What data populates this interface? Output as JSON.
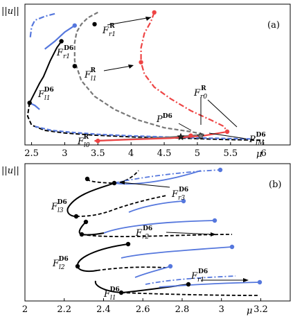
{
  "chart_data": [
    {
      "panel": "(a)",
      "type": "line",
      "ylabel": "||u||",
      "xlabel": "μ",
      "xlim": [
        2.4,
        6.4
      ],
      "x_ticks": [
        "2.5",
        "3",
        "3.5",
        "4",
        "4.5",
        "5",
        "5.5",
        "6"
      ],
      "x_tick_values": [
        2.5,
        3,
        3.5,
        4,
        4.5,
        5,
        5.5,
        6
      ],
      "colors": {
        "D6_stable": "#000000",
        "D6_branch": "#5577dd",
        "R_branch": "#ee4444",
        "R_unstable": "#777777",
        "stable_low": "#888888"
      },
      "series": [
        {
          "color": "#5577dd",
          "style": "dashdot",
          "points": [
            [
              2.85,
              0.98
            ],
            [
              2.7,
              0.96
            ],
            [
              2.55,
              0.93
            ],
            [
              2.5,
              0.88
            ],
            [
              2.48,
              0.8
            ]
          ]
        },
        {
          "color": "#5577dd",
          "style": "solid",
          "points": [
            [
              3.15,
              0.89
            ],
            [
              3.0,
              0.84
            ],
            [
              2.85,
              0.77
            ],
            [
              2.7,
              0.71
            ]
          ]
        },
        {
          "color": "#000000",
          "style": "solid",
          "points": [
            [
              2.47,
              0.3
            ],
            [
              2.55,
              0.38
            ],
            [
              2.62,
              0.45
            ],
            [
              2.68,
              0.5
            ],
            [
              2.78,
              0.62
            ],
            [
              2.88,
              0.72
            ],
            [
              2.95,
              0.77
            ]
          ]
        },
        {
          "color": "#5577dd",
          "style": "solid",
          "points": [
            [
              2.47,
              0.3
            ],
            [
              2.55,
              0.28
            ],
            [
              2.62,
              0.25
            ]
          ]
        },
        {
          "color": "#000000",
          "style": "dashed",
          "points": [
            [
              2.47,
              0.3
            ],
            [
              2.44,
              0.2
            ],
            [
              2.5,
              0.13
            ],
            [
              2.7,
              0.09
            ],
            [
              3.0,
              0.07
            ],
            [
              3.4,
              0.055
            ],
            [
              4.0,
              0.04
            ],
            [
              4.8,
              0.03
            ],
            [
              5.4,
              0.02
            ],
            [
              6.0,
              0.015
            ]
          ]
        },
        {
          "color": "#5577dd",
          "style": "dashed",
          "points": [
            [
              2.55,
              0.12
            ],
            [
              2.8,
              0.09
            ],
            [
              3.1,
              0.075
            ],
            [
              3.5,
              0.06
            ],
            [
              4.0,
              0.048
            ],
            [
              4.6,
              0.038
            ],
            [
              5.2,
              0.03
            ],
            [
              5.8,
              0.025
            ]
          ]
        },
        {
          "color": "#777777",
          "style": "dashed",
          "points": [
            [
              3.5,
              0.99
            ],
            [
              3.35,
              0.95
            ],
            [
              3.25,
              0.9
            ],
            [
              3.18,
              0.84
            ],
            [
              3.15,
              0.76
            ],
            [
              3.15,
              0.62
            ],
            [
              3.25,
              0.47
            ],
            [
              3.45,
              0.35
            ],
            [
              3.75,
              0.25
            ],
            [
              4.1,
              0.17
            ],
            [
              4.5,
              0.11
            ],
            [
              4.9,
              0.08
            ],
            [
              5.1,
              0.06
            ]
          ]
        },
        {
          "color": "#777777",
          "style": "solid",
          "points": [
            [
              3.45,
              0.01
            ],
            [
              3.9,
              0.02
            ],
            [
              4.5,
              0.035
            ],
            [
              4.9,
              0.05
            ],
            [
              5.1,
              0.06
            ]
          ]
        },
        {
          "color": "#ee4444",
          "style": "dashdot",
          "points": [
            [
              4.35,
              0.99
            ],
            [
              4.3,
              0.92
            ],
            [
              4.2,
              0.83
            ],
            [
              4.15,
              0.72
            ],
            [
              4.15,
              0.61
            ],
            [
              4.2,
              0.52
            ],
            [
              4.35,
              0.42
            ],
            [
              4.6,
              0.33
            ],
            [
              4.9,
              0.24
            ],
            [
              5.2,
              0.17
            ],
            [
              5.4,
              0.12
            ],
            [
              5.45,
              0.08
            ]
          ]
        },
        {
          "color": "#ee4444",
          "style": "solid",
          "points": [
            [
              3.45,
              0.01
            ],
            [
              4.0,
              0.02
            ],
            [
              4.6,
              0.03
            ],
            [
              5.1,
              0.05
            ],
            [
              5.45,
              0.08
            ]
          ]
        }
      ],
      "points": [
        {
          "label": "F_r1^R",
          "x": 3.45,
          "y": 0.9
        },
        {
          "label": "F_l1^R",
          "x": 3.15,
          "y": 0.58
        },
        {
          "label": "F_r1^D6",
          "x": 2.95,
          "y": 0.77
        },
        {
          "label": "F_l1^D6",
          "x": 2.47,
          "y": 0.3
        },
        {
          "label": "F_l0^R",
          "x": 3.5,
          "y": 0.01
        },
        {
          "label": "F_r0^R",
          "x": 4.9,
          "y": 0.05
        },
        {
          "label": "P^D6",
          "x": 4.75,
          "y": 0.04
        },
        {
          "label": "P_IM^D6",
          "x": 5.05,
          "y": 0.045
        }
      ],
      "annotations": {
        "panel_label": "(a)",
        "F_r1_R": {
          "base": "F",
          "sup": "R",
          "sub": "r1"
        },
        "F_l1_R": {
          "base": "F",
          "sup": "R",
          "sub": "l1"
        },
        "F_r1_D6": {
          "base": "F",
          "sup": "D6",
          "sub": "r1"
        },
        "F_l1_D6": {
          "base": "F",
          "sup": "D6",
          "sub": "l1"
        },
        "F_l0_R": {
          "base": "F",
          "sup": "R",
          "sub": "l0"
        },
        "F_r0_R": {
          "base": "F",
          "sup": "R",
          "sub": "r0"
        },
        "P_D6": {
          "base": "P",
          "sup": "D6",
          "sub": ""
        },
        "P_IM_D6": {
          "base": "P",
          "sup": "D6",
          "sub": "IM"
        }
      }
    },
    {
      "panel": "(b)",
      "type": "line",
      "ylabel": "||u||",
      "xlabel": "μ",
      "xlim": [
        2.0,
        3.35
      ],
      "x_ticks": [
        "2",
        "2.2",
        "2.4",
        "2.6",
        "2.8",
        "3",
        "3.2"
      ],
      "x_tick_values": [
        2.0,
        2.2,
        2.4,
        2.6,
        2.8,
        3.0,
        3.2
      ],
      "annotations": {
        "panel_label": "(b)",
        "F_r3_D6": {
          "base": "F",
          "sup": "D6",
          "sub": "r3"
        },
        "F_l3_D6": {
          "base": "F",
          "sup": "D6",
          "sub": "l3"
        },
        "F_r2_D6": {
          "base": "F",
          "sup": "D6",
          "sub": "r2"
        },
        "F_l2_D6": {
          "base": "F",
          "sup": "D6",
          "sub": "l2"
        },
        "F_r1_D6": {
          "base": "F",
          "sup": "D6",
          "sub": "r1"
        },
        "F_l1_D6": {
          "base": "F",
          "sup": "D6",
          "sub": "l1"
        }
      }
    }
  ]
}
